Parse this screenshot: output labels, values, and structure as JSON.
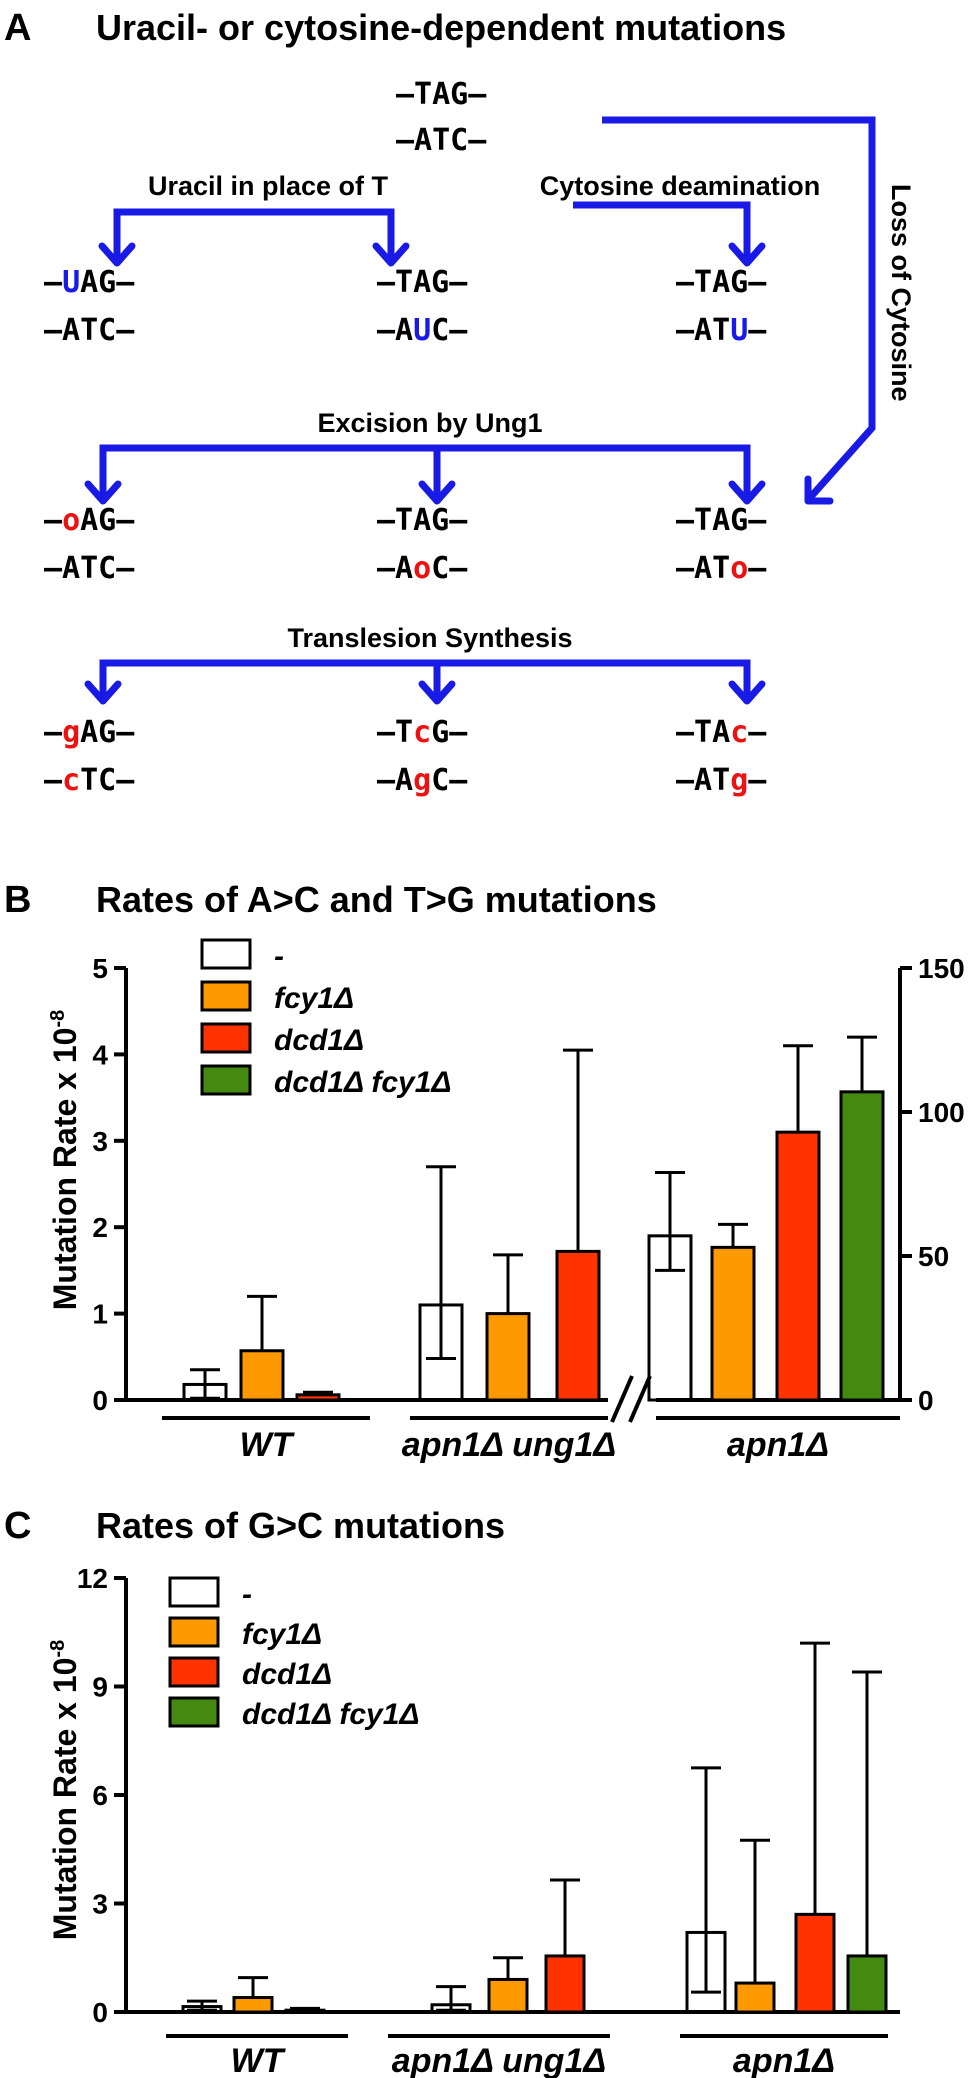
{
  "panelA": {
    "letter": "A",
    "title": "Uracil- or cytosine-dependent mutations",
    "start": {
      "top": "–TAG–",
      "bottom": "–ATC–"
    },
    "labels": {
      "uracil": "Uracil in place of T",
      "deam": "Cytosine deamination",
      "loss": "Loss of Cytosine",
      "excision": "Excision by Ung1",
      "tls": "Translesion Synthesis"
    },
    "row1": [
      {
        "top": [
          "–",
          "U",
          "AG–"
        ],
        "bottom": [
          "–ATC–",
          "",
          ""
        ]
      },
      {
        "top": [
          "–TAG–",
          "",
          ""
        ],
        "bottom": [
          "–A",
          "U",
          "C–"
        ]
      },
      {
        "top": [
          "–TAG–",
          "",
          ""
        ],
        "bottom": [
          "–AT",
          "U",
          "–"
        ]
      }
    ],
    "row2": [
      {
        "top": [
          "–",
          "o",
          "AG–"
        ],
        "bottom": [
          "–ATC–",
          "",
          ""
        ]
      },
      {
        "top": [
          "–TAG–",
          "",
          ""
        ],
        "bottom": [
          "–A",
          "o",
          "C–"
        ]
      },
      {
        "top": [
          "–TAG–",
          "",
          ""
        ],
        "bottom": [
          "–AT",
          "o",
          "–"
        ]
      }
    ],
    "row3": [
      {
        "top": [
          "–",
          "g",
          "AG–"
        ],
        "bottom": [
          "–",
          "c",
          "TC–"
        ]
      },
      {
        "top": [
          "–T",
          "c",
          "G–"
        ],
        "bottom": [
          "–A",
          "g",
          "C–"
        ]
      },
      {
        "top": [
          "–TA",
          "c",
          "–"
        ],
        "bottom": [
          "–AT",
          "g",
          "–"
        ]
      }
    ],
    "colors": {
      "arrow": "#1a1ae6",
      "uracil": "#1a1ae6",
      "lesion": "#ee1111",
      "text": "#000000"
    }
  },
  "chart_data": [
    {
      "type": "bar",
      "panel": "B",
      "title": "Rates of A>C and T>G mutations",
      "ylabel": "Mutation Rate x 10",
      "ylabel_sup": "-8",
      "ylim": [
        0,
        5
      ],
      "yticks": [
        "0",
        "1",
        "2",
        "3",
        "4",
        "5"
      ],
      "y2lim": [
        0,
        150
      ],
      "y2ticks": [
        "0",
        "50",
        "100",
        "150"
      ],
      "legend": [
        "-",
        "fcy1Δ",
        "dcd1Δ",
        "dcd1Δ fcy1Δ"
      ],
      "colors": [
        "#ffffff",
        "#ff9900",
        "#ff3300",
        "#448a11"
      ],
      "groups": [
        {
          "label": "WT",
          "axis": "left",
          "values": [
            0.18,
            0.57,
            0.06
          ],
          "err_low": [
            0.02,
            0.02,
            0.03
          ],
          "err_high": [
            0.35,
            1.2,
            0.09
          ]
        },
        {
          "label": "apn1Δ ung1Δ",
          "axis": "left",
          "values": [
            1.1,
            1.0,
            1.72
          ],
          "err_low": [
            0.48,
            0.55,
            0.73
          ],
          "err_high": [
            2.7,
            1.68,
            4.05
          ]
        },
        {
          "label": "apn1Δ",
          "axis": "right",
          "values": [
            57,
            53,
            93,
            107
          ],
          "err_low": [
            45,
            44,
            60,
            88
          ],
          "err_high": [
            79,
            61,
            123,
            126
          ]
        }
      ]
    },
    {
      "type": "bar",
      "panel": "C",
      "title": "Rates of G>C mutations",
      "ylabel": "Mutation Rate x 10",
      "ylabel_sup": "-8",
      "ylim": [
        0,
        12
      ],
      "yticks": [
        "0",
        "3",
        "6",
        "9",
        "12"
      ],
      "legend": [
        "-",
        "fcy1Δ",
        "dcd1Δ",
        "dcd1Δ fcy1Δ"
      ],
      "colors": [
        "#ffffff",
        "#ff9900",
        "#ff3300",
        "#448a11"
      ],
      "groups": [
        {
          "label": "WT",
          "values": [
            0.15,
            0.4,
            0.05
          ],
          "err_low": [
            0.05,
            0.05,
            0.02
          ],
          "err_high": [
            0.3,
            0.95,
            0.1
          ]
        },
        {
          "label": "apn1Δ ung1Δ",
          "values": [
            0.2,
            0.9,
            1.55
          ],
          "err_low": [
            0.05,
            0.4,
            0.45
          ],
          "err_high": [
            0.7,
            1.5,
            3.65
          ]
        },
        {
          "label": "apn1Δ",
          "values": [
            2.2,
            0.8,
            2.7,
            1.55
          ],
          "err_low": [
            0.55,
            0.1,
            0.4,
            0.15
          ],
          "err_high": [
            6.75,
            4.75,
            10.2,
            9.4
          ]
        }
      ]
    }
  ]
}
